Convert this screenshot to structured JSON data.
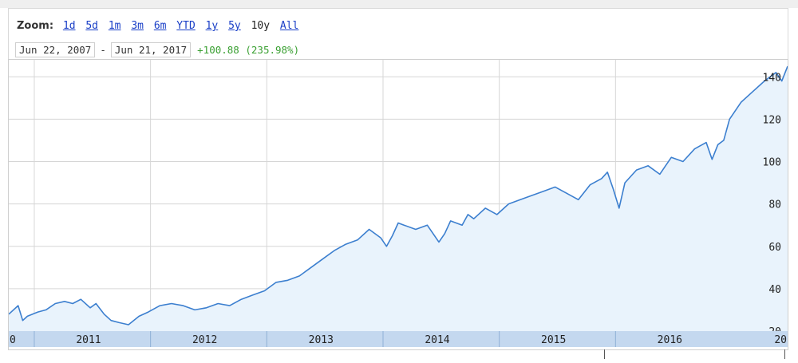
{
  "toolbar": {
    "zoom_label": "Zoom:",
    "zoom_links": [
      "1d",
      "5d",
      "1m",
      "3m",
      "6m",
      "YTD",
      "1y",
      "5y"
    ],
    "zoom_current": "10y",
    "zoom_all": "All",
    "start_date": "Jun 22, 2007",
    "separator": "-",
    "end_date": "Jun 21, 2017",
    "change": "+100.88 (235.98%)"
  },
  "colors": {
    "line": "#3c7fcf",
    "fill": "#e9f3fc",
    "axis_band": "#c4d8ef",
    "grid": "#d6d6d6",
    "change": "#3aa032",
    "link": "#1a3fc7"
  },
  "chart_data": {
    "type": "area",
    "title": "",
    "xlabel": "",
    "ylabel": "",
    "ylim": [
      20,
      148
    ],
    "xlim": [
      2010.3,
      2017.0
    ],
    "yticks": [
      20,
      40,
      60,
      80,
      100,
      120,
      140
    ],
    "ytick_labels": [
      "20",
      "40",
      "60",
      "80",
      "100",
      "120",
      "140"
    ],
    "xticks": [
      2011,
      2012,
      2013,
      2014,
      2015,
      2016
    ],
    "xtick_labels": [
      "2011",
      "2012",
      "2013",
      "2014",
      "2015",
      "2016"
    ],
    "edge_labels": [
      "0",
      "20"
    ],
    "grid": true,
    "series": [
      {
        "x": [
          2010.3,
          2010.38,
          2010.42,
          2010.46,
          2010.55,
          2010.62,
          2010.7,
          2010.78,
          2010.85,
          2010.92,
          2011.0,
          2011.05,
          2011.12,
          2011.18,
          2011.25,
          2011.33,
          2011.42,
          2011.5,
          2011.6,
          2011.7,
          2011.8,
          2011.9,
          2012.0,
          2012.1,
          2012.2,
          2012.3,
          2012.4,
          2012.5,
          2012.6,
          2012.7,
          2012.8,
          2012.9,
          2013.0,
          2013.1,
          2013.2,
          2013.3,
          2013.4,
          2013.5,
          2013.55,
          2013.6,
          2013.65,
          2013.7,
          2013.8,
          2013.9,
          2014.0,
          2014.05,
          2014.1,
          2014.2,
          2014.25,
          2014.3,
          2014.4,
          2014.5,
          2014.6,
          2014.7,
          2014.8,
          2014.9,
          2015.0,
          2015.1,
          2015.2,
          2015.3,
          2015.4,
          2015.45,
          2015.5,
          2015.55,
          2015.6,
          2015.7,
          2015.8,
          2015.9,
          2015.95,
          2016.0,
          2016.1,
          2016.2,
          2016.3,
          2016.35,
          2016.4,
          2016.45,
          2016.5,
          2016.6,
          2016.7,
          2016.8,
          2016.9,
          2016.95,
          2017.0
        ],
        "y": [
          28,
          32,
          25,
          27,
          29,
          30,
          33,
          34,
          33,
          35,
          31,
          33,
          28,
          25,
          24,
          23,
          27,
          29,
          32,
          33,
          32,
          30,
          31,
          33,
          32,
          35,
          37,
          39,
          43,
          44,
          46,
          50,
          54,
          58,
          61,
          63,
          68,
          64,
          60,
          65,
          71,
          70,
          68,
          70,
          62,
          66,
          72,
          70,
          75,
          73,
          78,
          75,
          80,
          82,
          84,
          86,
          88,
          85,
          82,
          89,
          92,
          95,
          87,
          78,
          90,
          96,
          98,
          94,
          98,
          102,
          100,
          106,
          109,
          101,
          108,
          110,
          120,
          128,
          133,
          138,
          142,
          138,
          145
        ]
      }
    ]
  }
}
